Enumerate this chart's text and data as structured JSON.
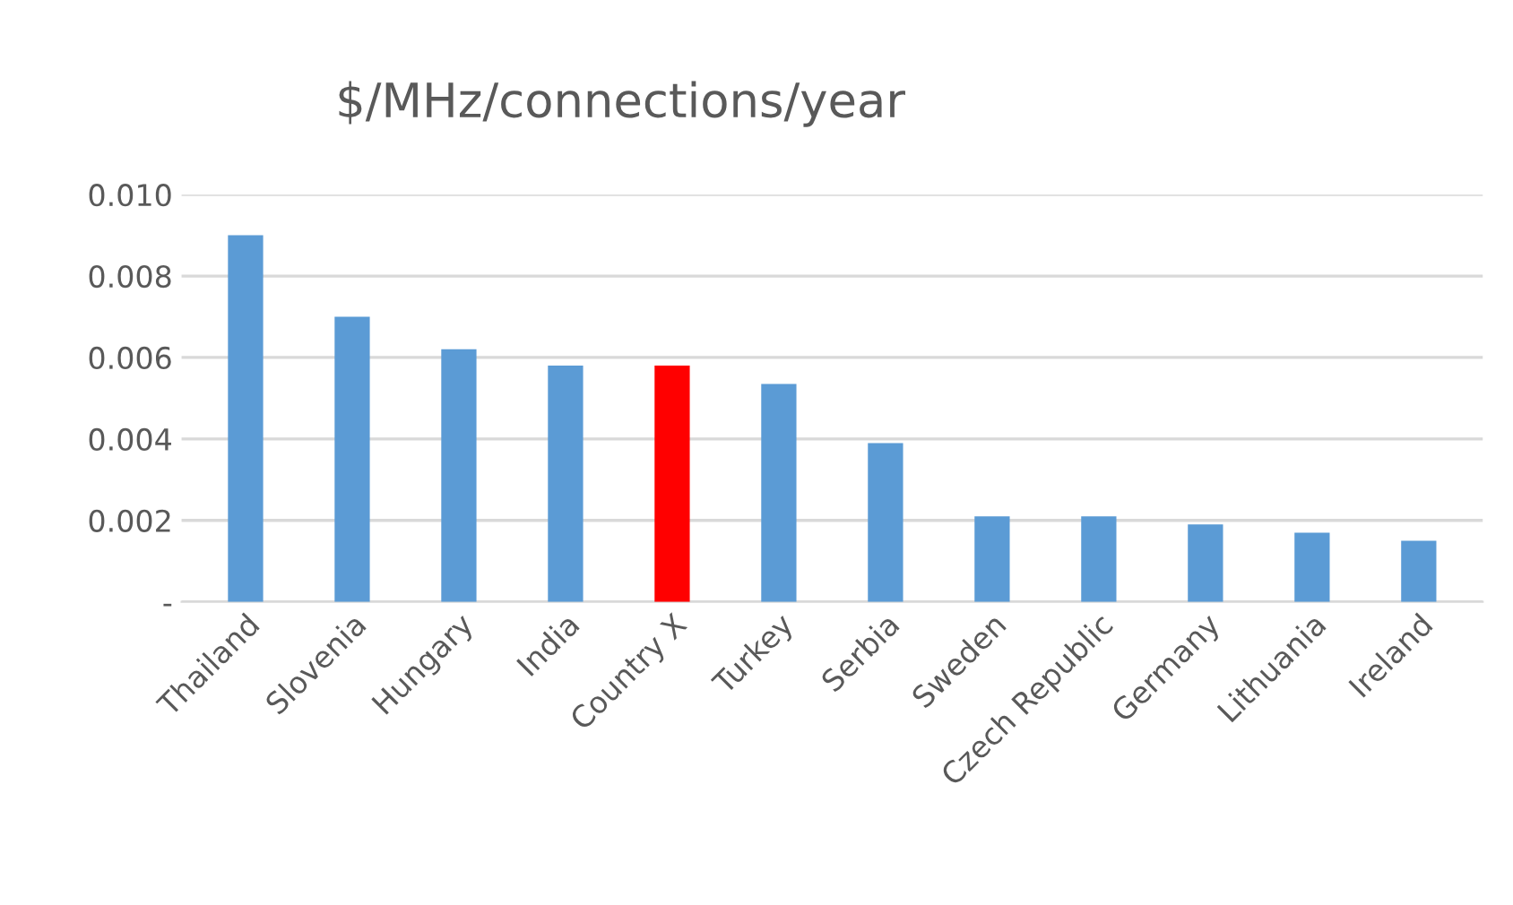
{
  "chart_data": {
    "type": "bar",
    "title": "$/MHz/connections/year",
    "categories": [
      "Thailand",
      "Slovenia",
      "Hungary",
      "India",
      "Country X",
      "Turkey",
      "Serbia",
      "Sweden",
      "Czech Republic",
      "Germany",
      "Lithuania",
      "Ireland"
    ],
    "values": [
      0.009,
      0.007,
      0.0062,
      0.0058,
      0.0058,
      0.00535,
      0.0039,
      0.0021,
      0.0021,
      0.0019,
      0.0017,
      0.0015
    ],
    "colors": [
      "#5b9bd5",
      "#5b9bd5",
      "#5b9bd5",
      "#5b9bd5",
      "#ff0000",
      "#5b9bd5",
      "#5b9bd5",
      "#5b9bd5",
      "#5b9bd5",
      "#5b9bd5",
      "#5b9bd5",
      "#5b9bd5"
    ],
    "ylim": [
      0,
      0.01
    ],
    "yticks": [
      {
        "value": 0,
        "label": "-"
      },
      {
        "value": 0.002,
        "label": "0.002"
      },
      {
        "value": 0.004,
        "label": "0.004"
      },
      {
        "value": 0.006,
        "label": "0.006"
      },
      {
        "value": 0.008,
        "label": "0.008"
      },
      {
        "value": 0.01,
        "label": "0.010"
      }
    ],
    "grid": "y",
    "legend": false
  }
}
